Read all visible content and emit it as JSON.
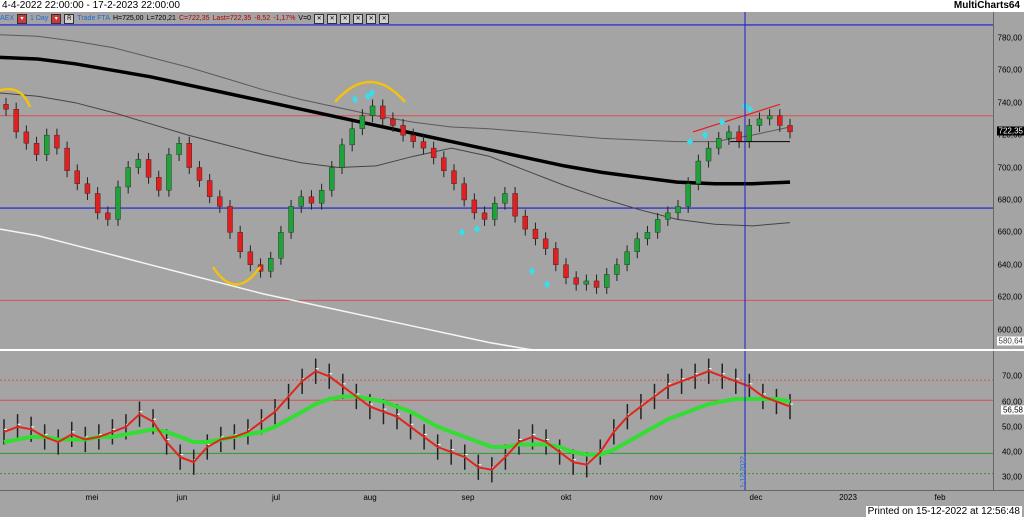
{
  "header": {
    "date_range": "4-4-2022 22:00:00 - 17-2-2023 22:00:00",
    "brand": "MultiCharts64"
  },
  "status_bar": {
    "symbol": "AEX",
    "timeframe": "1 Day",
    "r_button": "R",
    "trade_label": "Trade FTA",
    "high": "H=725,00",
    "low": "L=720,21",
    "close": "C=722,35",
    "last": "Last=722,35",
    "change": "-8,52",
    "change_pct": "-1,17%",
    "volume": "V=0",
    "box_icons": [
      "close-icon",
      "close-icon",
      "close-icon",
      "close-icon",
      "close-icon",
      "close-icon"
    ]
  },
  "price_axis": {
    "ticks": [
      "780,00",
      "760,00",
      "740,00",
      "720,00",
      "700,00",
      "680,00",
      "660,00",
      "640,00",
      "620,00",
      "600,00"
    ],
    "last_price_badge": "722,35",
    "sma_badge": "580,64"
  },
  "indicator_axis": {
    "ticks": [
      "70,00",
      "60,00",
      "50,00",
      "40,00",
      "30,00"
    ],
    "value_badge": "56,58"
  },
  "x_axis": {
    "months": [
      "mei",
      "jun",
      "jul",
      "aug",
      "sep",
      "okt",
      "nov",
      "dec",
      "2023",
      "feb"
    ],
    "crosshair_date": "1-12-2022"
  },
  "footer": {
    "printed": "Printed on 15-12-2022 at 12:56:48"
  },
  "colors": {
    "pane_bg": "#a4a4a4",
    "up_candle": "#1fa23a",
    "down_candle": "#e02020",
    "level_line": "#1a1ad8",
    "ma_fast": "#e0261c",
    "ma_slow": "#33dd33",
    "highlight_arc": "#f2c20c",
    "signal_marker": "#33e0f0"
  },
  "chart_data": {
    "type": "candlestick",
    "price_levels": {
      "resistance_blue": 788,
      "support_blue": 675,
      "red_line_upper": 732,
      "red_line_lower": 618
    },
    "moving_averages": {
      "black_thick": [
        768,
        767,
        764,
        760,
        756,
        751,
        746,
        741,
        736,
        731,
        726,
        721,
        716,
        711,
        706,
        701,
        697,
        694,
        691,
        690,
        690,
        691
      ],
      "dark_gray": [
        746,
        744,
        740,
        734,
        727,
        720,
        714,
        708,
        703,
        700,
        701,
        707,
        712,
        707,
        698,
        689,
        681,
        674,
        668,
        665,
        664,
        666
      ],
      "light_gray": [
        782,
        781,
        778,
        774,
        768,
        762,
        755,
        748,
        742,
        737,
        732,
        728,
        725,
        724,
        722,
        720,
        718,
        717,
        716,
        716,
        720,
        725
      ],
      "white": [
        662,
        658,
        652,
        646,
        640,
        634,
        628,
        622,
        617,
        612,
        607,
        602,
        597,
        592,
        588,
        585,
        583,
        582,
        581,
        581,
        581,
        584
      ]
    },
    "closes": [
      736,
      722,
      715,
      708,
      720,
      712,
      698,
      690,
      684,
      672,
      668,
      688,
      700,
      705,
      694,
      686,
      708,
      715,
      700,
      692,
      682,
      676,
      660,
      648,
      640,
      636,
      644,
      660,
      676,
      682,
      678,
      686,
      700,
      714,
      724,
      732,
      738,
      730,
      726,
      720,
      716,
      712,
      706,
      698,
      690,
      680,
      672,
      668,
      678,
      684,
      670,
      662,
      656,
      650,
      640,
      632,
      628,
      630,
      626,
      634,
      640,
      648,
      656,
      660,
      668,
      672,
      676,
      690,
      704,
      712,
      718,
      722,
      716,
      726,
      730,
      732,
      726,
      722
    ],
    "indicator": {
      "ylim": [
        25,
        80
      ],
      "upper_band": 68.5,
      "mid_band": 60.5,
      "lower_band": 39.5,
      "bottom_band": 31.5,
      "fast": [
        48,
        50,
        49,
        46,
        44,
        47,
        45,
        46,
        48,
        50,
        55,
        52,
        44,
        38,
        36,
        42,
        45,
        46,
        48,
        52,
        56,
        62,
        68,
        72,
        70,
        66,
        62,
        58,
        56,
        54,
        50,
        46,
        42,
        40,
        38,
        34,
        33,
        38,
        44,
        46,
        44,
        40,
        36,
        35,
        40,
        48,
        54,
        58,
        62,
        66,
        68,
        70,
        72,
        70,
        68,
        66,
        62,
        60,
        58
      ],
      "slow": [
        44,
        45,
        46,
        46,
        45,
        45,
        45,
        46,
        46,
        47,
        48,
        49,
        48,
        46,
        44,
        44,
        45,
        46,
        47,
        48,
        50,
        53,
        56,
        59,
        61,
        62,
        62,
        61,
        60,
        58,
        56,
        53,
        50,
        48,
        46,
        44,
        42,
        42,
        43,
        43,
        43,
        42,
        40,
        39,
        39,
        41,
        44,
        47,
        50,
        53,
        55,
        57,
        59,
        60,
        61,
        61,
        61,
        61,
        60
      ]
    }
  }
}
